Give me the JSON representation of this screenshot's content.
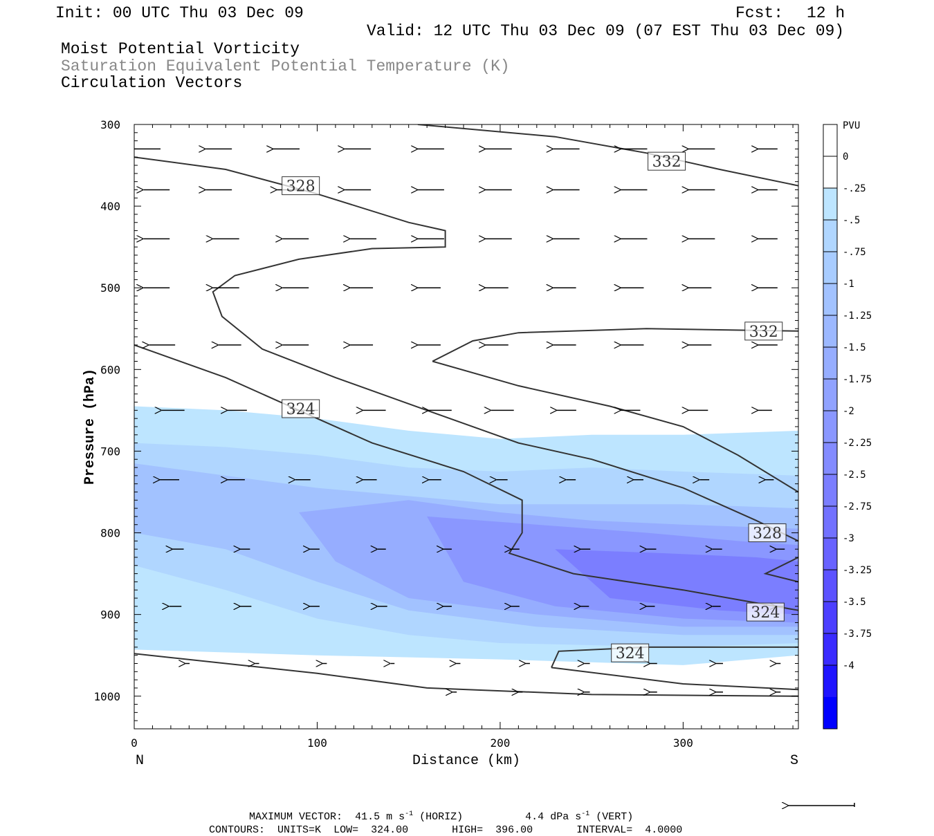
{
  "header": {
    "init": "Init: 00 UTC Thu 03 Dec 09",
    "fcst_label": "Fcst:",
    "fcst_value": "12 h",
    "valid": "Valid: 12 UTC Thu 03 Dec 09 (07 EST Thu 03 Dec 09)",
    "field1": "Moist Potential Vorticity",
    "field2": "Saturation Equivalent Potential Temperature (K)",
    "field3": "Circulation Vectors"
  },
  "footer": {
    "maxvec_label": "MAXIMUM VECTOR:",
    "maxvec_horiz": "41.5",
    "maxvec_horiz_unit": "m s",
    "maxvec_horiz_exp": "-1",
    "maxvec_horiz_tag": "(HORIZ)",
    "maxvec_vert": "4.4",
    "maxvec_vert_unit": "dPa s",
    "maxvec_vert_exp": "-1",
    "maxvec_vert_tag": "(VERT)",
    "contours_label": "CONTOURS:",
    "units": "UNITS=K",
    "low_label": "LOW=",
    "low": "324.00",
    "high_label": "HIGH=",
    "high": "396.00",
    "interval_label": "INTERVAL=",
    "interval": "4.0000"
  },
  "chart_data": {
    "type": "cross-section contour",
    "xlabel": "Distance (km)",
    "ylabel": "Pressure (hPa)",
    "xlim": [
      0,
      363
    ],
    "ylim": [
      1040,
      300
    ],
    "x_ticks": [
      "0",
      "100",
      "200",
      "300"
    ],
    "y_ticks": [
      "300",
      "400",
      "500",
      "600",
      "700",
      "800",
      "900",
      "1000"
    ],
    "left_end_label": "N",
    "right_end_label": "S",
    "colorbar": {
      "unit": "PVU",
      "levels": [
        "0",
        "-.25",
        "-.5",
        "-.75",
        "-1",
        "-1.25",
        "-1.5",
        "-1.75",
        "-2",
        "-2.25",
        "-2.5",
        "-2.75",
        "-3",
        "-3.25",
        "-3.5",
        "-3.75",
        "-4"
      ],
      "colors": [
        "#ffffff",
        "#ffffff",
        "#bde5ff",
        "#b0d6ff",
        "#a8ccff",
        "#a2c2ff",
        "#9cb8ff",
        "#96adff",
        "#90a2ff",
        "#8a97ff",
        "#838bff",
        "#7b7eff",
        "#7271ff",
        "#6862ff",
        "#5c52ff",
        "#4c3fff",
        "#3a2bff",
        "#1f14ff",
        "#0000ff"
      ]
    },
    "pv_regions": [
      {
        "level": -0.25,
        "points": [
          [
            0,
            645
          ],
          [
            50,
            650
          ],
          [
            100,
            660
          ],
          [
            150,
            675
          ],
          [
            200,
            685
          ],
          [
            250,
            680
          ],
          [
            300,
            680
          ],
          [
            363,
            675
          ],
          [
            363,
            950
          ],
          [
            300,
            962
          ],
          [
            200,
            955
          ],
          [
            100,
            950
          ],
          [
            0,
            943
          ]
        ]
      },
      {
        "level": -0.5,
        "points": [
          [
            0,
            690
          ],
          [
            50,
            695
          ],
          [
            100,
            705
          ],
          [
            150,
            720
          ],
          [
            200,
            725
          ],
          [
            250,
            720
          ],
          [
            300,
            725
          ],
          [
            363,
            730
          ],
          [
            363,
            935
          ],
          [
            300,
            940
          ],
          [
            200,
            935
          ],
          [
            150,
            925
          ],
          [
            100,
            905
          ],
          [
            50,
            870
          ],
          [
            0,
            840
          ]
        ]
      },
      {
        "level": -1.0,
        "points": [
          [
            0,
            715
          ],
          [
            50,
            730
          ],
          [
            100,
            745
          ],
          [
            150,
            755
          ],
          [
            200,
            765
          ],
          [
            250,
            765
          ],
          [
            300,
            765
          ],
          [
            363,
            770
          ],
          [
            363,
            925
          ],
          [
            300,
            925
          ],
          [
            220,
            915
          ],
          [
            150,
            895
          ],
          [
            100,
            860
          ],
          [
            50,
            820
          ],
          [
            0,
            800
          ]
        ]
      },
      {
        "level": -1.5,
        "points": [
          [
            90,
            775
          ],
          [
            150,
            760
          ],
          [
            200,
            775
          ],
          [
            250,
            785
          ],
          [
            300,
            790
          ],
          [
            363,
            795
          ],
          [
            363,
            915
          ],
          [
            300,
            915
          ],
          [
            220,
            900
          ],
          [
            150,
            880
          ],
          [
            110,
            835
          ]
        ]
      },
      {
        "level": -2.0,
        "points": [
          [
            160,
            780
          ],
          [
            220,
            790
          ],
          [
            280,
            800
          ],
          [
            330,
            810
          ],
          [
            363,
            815
          ],
          [
            363,
            910
          ],
          [
            300,
            905
          ],
          [
            230,
            890
          ],
          [
            180,
            860
          ]
        ]
      },
      {
        "level": -2.5,
        "points": [
          [
            230,
            820
          ],
          [
            290,
            825
          ],
          [
            340,
            830
          ],
          [
            363,
            835
          ],
          [
            363,
            900
          ],
          [
            320,
            895
          ],
          [
            260,
            880
          ]
        ]
      }
    ],
    "theta_contours": [
      {
        "label": "332",
        "points": [
          [
            155,
            300
          ],
          [
            230,
            315
          ],
          [
            280,
            335
          ],
          [
            320,
            355
          ],
          [
            363,
            375
          ]
        ]
      },
      {
        "label": "332",
        "points": [
          [
            163,
            590
          ],
          [
            185,
            565
          ],
          [
            210,
            555
          ],
          [
            280,
            550
          ],
          [
            363,
            553
          ]
        ]
      },
      {
        "label": "328",
        "points": [
          [
            0,
            340
          ],
          [
            50,
            355
          ],
          [
            100,
            385
          ],
          [
            150,
            420
          ],
          [
            170,
            430
          ],
          [
            170,
            450
          ],
          [
            130,
            452
          ],
          [
            90,
            465
          ],
          [
            55,
            485
          ],
          [
            43,
            505
          ],
          [
            48,
            535
          ],
          [
            70,
            575
          ],
          [
            110,
            610
          ],
          [
            160,
            650
          ],
          [
            210,
            690
          ],
          [
            250,
            710
          ],
          [
            300,
            745
          ],
          [
            340,
            785
          ],
          [
            363,
            810
          ]
        ]
      },
      {
        "label": "328",
        "points": [
          [
            163,
            590
          ],
          [
            210,
            620
          ],
          [
            260,
            645
          ],
          [
            300,
            670
          ],
          [
            330,
            705
          ],
          [
            363,
            750
          ]
        ]
      },
      {
        "label": "324",
        "points": [
          [
            0,
            570
          ],
          [
            50,
            610
          ],
          [
            90,
            650
          ],
          [
            130,
            690
          ],
          [
            180,
            725
          ],
          [
            212,
            760
          ],
          [
            212,
            800
          ],
          [
            205,
            825
          ],
          [
            240,
            850
          ],
          [
            300,
            870
          ],
          [
            363,
            895
          ]
        ]
      },
      {
        "label": "324",
        "points": [
          [
            363,
            830
          ],
          [
            345,
            850
          ],
          [
            363,
            860
          ]
        ]
      },
      {
        "label": "324",
        "points": [
          [
            228,
            965
          ],
          [
            232,
            945
          ],
          [
            280,
            940
          ],
          [
            363,
            940
          ]
        ]
      },
      {
        "label": "",
        "points": [
          [
            0,
            948
          ],
          [
            100,
            972
          ],
          [
            160,
            990
          ],
          [
            250,
            998
          ],
          [
            363,
            1000
          ]
        ]
      },
      {
        "label": "",
        "points": [
          [
            228,
            965
          ],
          [
            300,
            985
          ],
          [
            363,
            992
          ]
        ]
      }
    ],
    "contour_labels": [
      {
        "text": "328",
        "x": 91,
        "y": 375
      },
      {
        "text": "332",
        "x": 291,
        "y": 345
      },
      {
        "text": "332",
        "x": 344,
        "y": 553
      },
      {
        "text": "324",
        "x": 91,
        "y": 648
      },
      {
        "text": "328",
        "x": 346,
        "y": 800
      },
      {
        "text": "324",
        "x": 345,
        "y": 897
      },
      {
        "text": "324",
        "x": 271,
        "y": 947
      }
    ],
    "vectors": [
      {
        "p": 330,
        "cols": [
          [
            0,
            38
          ],
          [
            39,
            38
          ],
          [
            76,
            38
          ],
          [
            115,
            38
          ],
          [
            155,
            38
          ],
          [
            192,
            38
          ],
          [
            229,
            38
          ],
          [
            266,
            38
          ],
          [
            303,
            38
          ],
          [
            341,
            28
          ]
        ]
      },
      {
        "p": 380,
        "cols": [
          [
            5,
            38
          ],
          [
            39,
            38
          ],
          [
            78,
            38
          ],
          [
            115,
            38
          ],
          [
            155,
            38
          ],
          [
            192,
            38
          ],
          [
            229,
            38
          ],
          [
            266,
            38
          ],
          [
            303,
            38
          ],
          [
            341,
            28
          ]
        ]
      },
      {
        "p": 440,
        "cols": [
          [
            5,
            38
          ],
          [
            43,
            38
          ],
          [
            81,
            38
          ],
          [
            118,
            38
          ],
          [
            155,
            38
          ],
          [
            192,
            38
          ],
          [
            229,
            38
          ],
          [
            266,
            38
          ],
          [
            303,
            38
          ],
          [
            341,
            28
          ]
        ]
      },
      {
        "p": 500,
        "cols": [
          [
            5,
            38
          ],
          [
            43,
            38
          ],
          [
            81,
            38
          ],
          [
            118,
            33
          ],
          [
            155,
            33
          ],
          [
            192,
            33
          ],
          [
            229,
            33
          ],
          [
            266,
            33
          ],
          [
            303,
            33
          ],
          [
            341,
            28
          ]
        ]
      },
      {
        "p": 570,
        "cols": [
          [
            8,
            38
          ],
          [
            46,
            33
          ],
          [
            81,
            38
          ],
          [
            118,
            33
          ],
          [
            155,
            33
          ],
          [
            192,
            33
          ],
          [
            229,
            33
          ],
          [
            266,
            33
          ],
          [
            303,
            33
          ],
          [
            341,
            28
          ]
        ]
      },
      {
        "p": 650,
        "cols": [
          [
            15,
            33
          ],
          [
            51,
            28
          ],
          [
            88,
            33
          ],
          [
            125,
            33
          ],
          [
            161,
            33
          ],
          [
            195,
            33
          ],
          [
            231,
            28
          ],
          [
            266,
            28
          ],
          [
            303,
            28
          ],
          [
            341,
            20
          ]
        ]
      },
      {
        "p": 735,
        "cols": [
          [
            14,
            28
          ],
          [
            51,
            25
          ],
          [
            88,
            22
          ],
          [
            125,
            20
          ],
          [
            161,
            18
          ],
          [
            198,
            16
          ],
          [
            236,
            14
          ],
          [
            273,
            14
          ],
          [
            309,
            14
          ],
          [
            345,
            12
          ]
        ]
      },
      {
        "p": 820,
        "cols": [
          [
            21,
            16
          ],
          [
            58,
            14
          ],
          [
            96,
            14
          ],
          [
            133,
            12
          ],
          [
            169,
            12
          ],
          [
            206,
            12
          ],
          [
            244,
            14
          ],
          [
            280,
            14
          ],
          [
            316,
            14
          ],
          [
            351,
            12
          ]
        ]
      },
      {
        "p": 890,
        "cols": [
          [
            19,
            18
          ],
          [
            58,
            16
          ],
          [
            96,
            14
          ],
          [
            133,
            14
          ],
          [
            169,
            12
          ],
          [
            206,
            12
          ],
          [
            244,
            12
          ],
          [
            280,
            12
          ],
          [
            316,
            12
          ],
          [
            351,
            10
          ]
        ]
      },
      {
        "p": 960,
        "cols": [
          [
            28,
            6
          ],
          [
            66,
            6
          ],
          [
            103,
            6
          ],
          [
            140,
            6
          ],
          [
            176,
            6
          ],
          [
            214,
            6
          ],
          [
            246,
            8
          ],
          [
            282,
            10
          ],
          [
            318,
            10
          ],
          [
            351,
            6
          ]
        ]
      },
      {
        "p": 995,
        "cols": [
          [
            174,
            6
          ],
          [
            210,
            6
          ],
          [
            246,
            8
          ],
          [
            282,
            10
          ],
          [
            318,
            10
          ],
          [
            351,
            6
          ]
        ]
      }
    ]
  }
}
